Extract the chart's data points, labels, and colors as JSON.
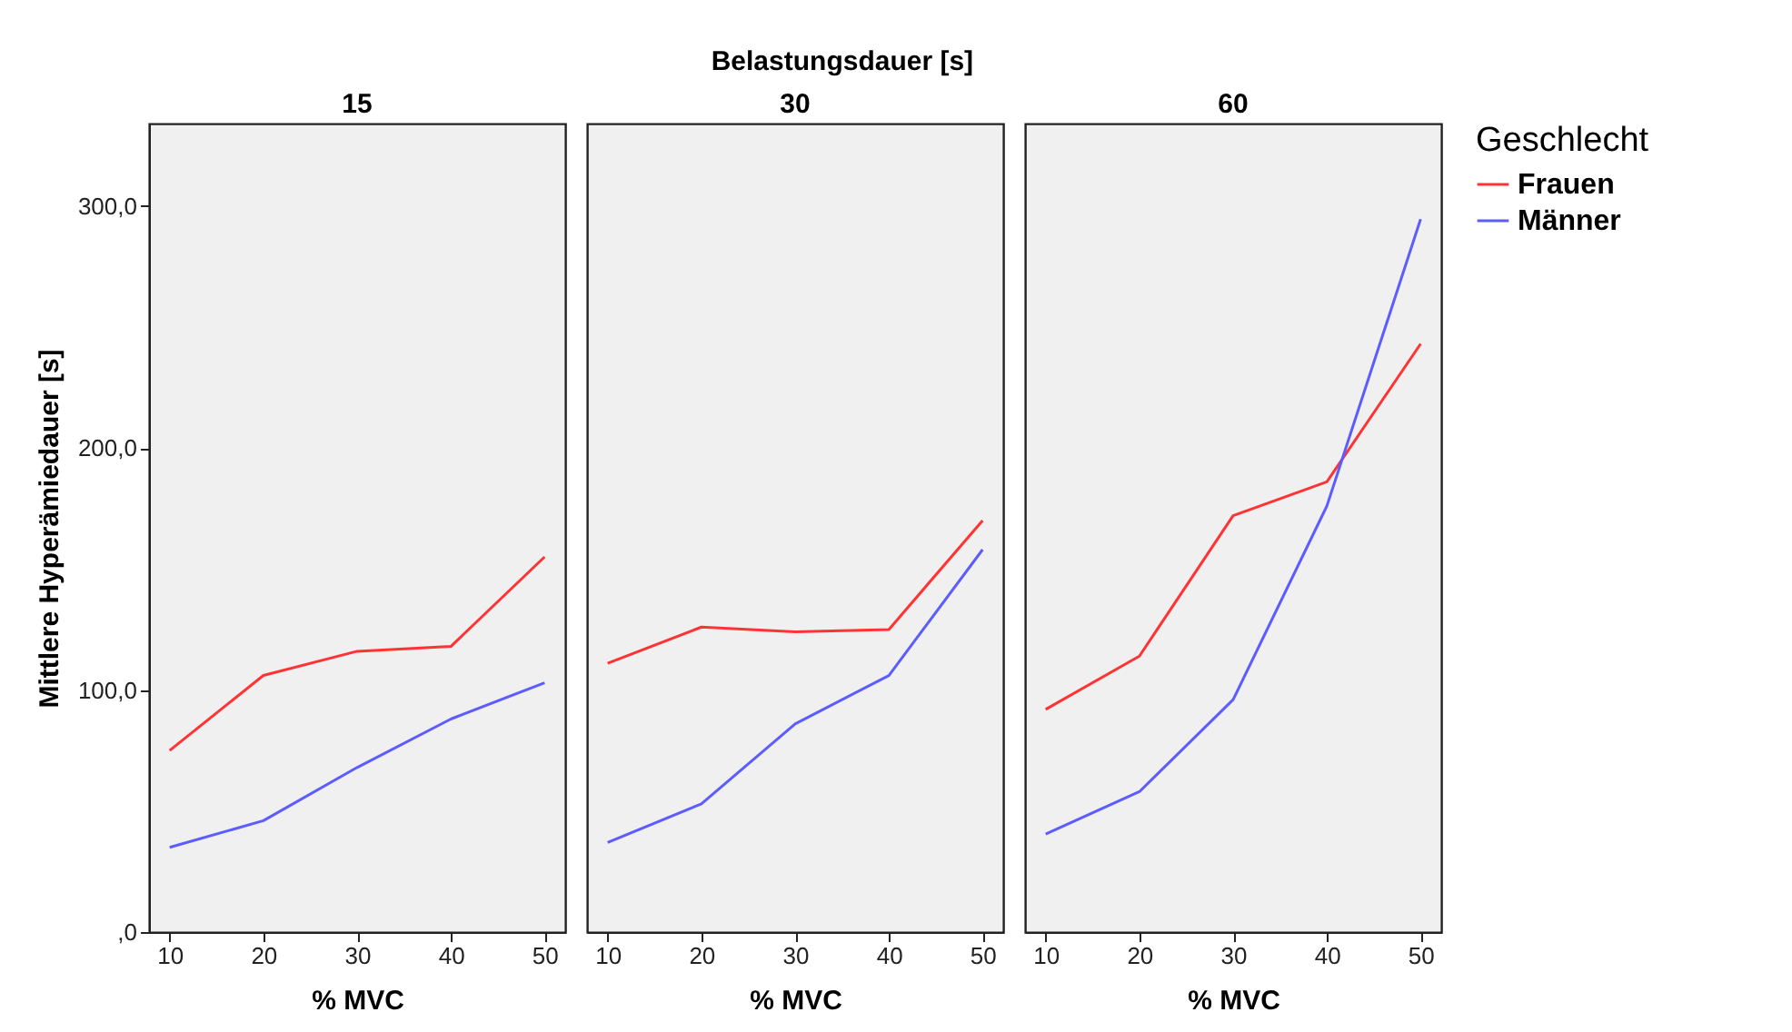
{
  "chart_data": [
    {
      "type": "line",
      "title": "15",
      "annotations": [
        "Belastungsdauer [s]"
      ],
      "xlabel": "% MVC",
      "ylabel": "Mittlere Hyperämiedauer [s]",
      "legend": "top right",
      "legend_title": "Geschlecht",
      "categories": [
        "10",
        "20",
        "30",
        "40",
        "50"
      ],
      "ylim": [
        0,
        334
      ],
      "yticks": [
        {
          "value": 0,
          "label": ",0"
        },
        {
          "value": 100,
          "label": "100,0"
        },
        {
          "value": 200,
          "label": "200,0"
        },
        {
          "value": 300,
          "label": "300,0"
        }
      ],
      "series": [
        {
          "name": "Frauen",
          "color": "#ff3333",
          "values": [
            75,
            106,
            116,
            118,
            155
          ]
        },
        {
          "name": "Männer",
          "color": "#5c5cff",
          "values": [
            35,
            46,
            68,
            88,
            103
          ]
        }
      ]
    },
    {
      "type": "line",
      "title": "30",
      "xlabel": "% MVC",
      "categories": [
        "10",
        "20",
        "30",
        "40",
        "50"
      ],
      "ylim": [
        0,
        334
      ],
      "tick_labels": "x",
      "series": [
        {
          "name": "Frauen",
          "color": "#ff3333",
          "values": [
            111,
            126,
            124,
            125,
            170
          ]
        },
        {
          "name": "Männer",
          "color": "#5c5cff",
          "values": [
            37,
            53,
            86,
            106,
            158
          ]
        }
      ]
    },
    {
      "type": "line",
      "title": "60",
      "xlabel": "% MVC",
      "categories": [
        "10",
        "20",
        "30",
        "40",
        "50"
      ],
      "ylim": [
        0,
        334
      ],
      "tick_labels": "x",
      "series": [
        {
          "name": "Frauen",
          "color": "#ff3333",
          "values": [
            92,
            114,
            172,
            186,
            243
          ]
        },
        {
          "name": "Männer",
          "color": "#5c5cff",
          "values": [
            40.5,
            58,
            96,
            176,
            294.5
          ]
        }
      ]
    }
  ]
}
